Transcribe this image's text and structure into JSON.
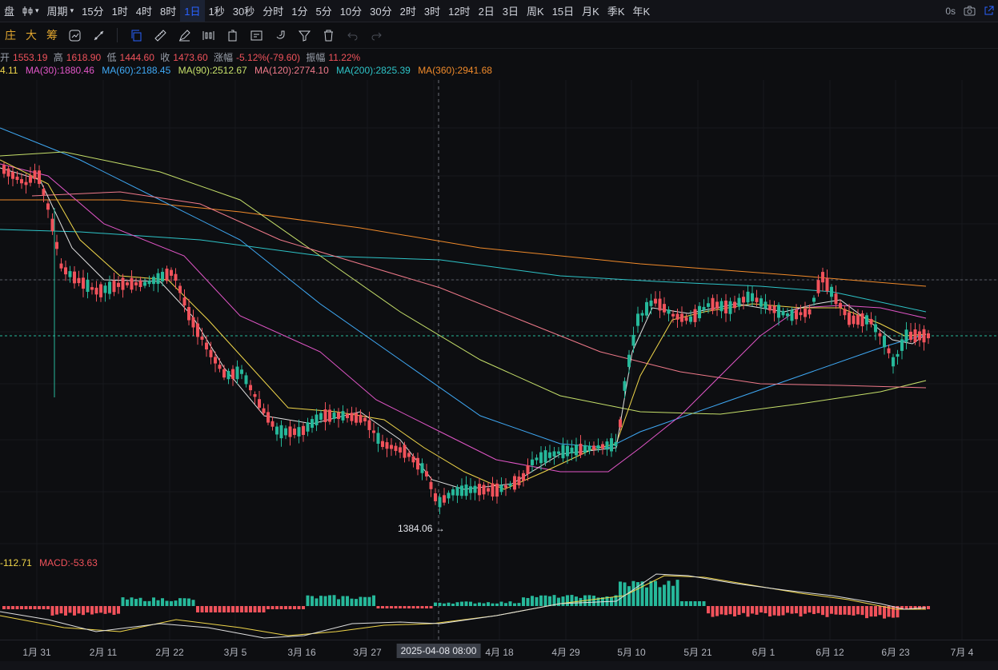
{
  "topbar": {
    "items": [
      "盘",
      "周期",
      "15分",
      "1时",
      "4时",
      "8时",
      "1日",
      "1秒",
      "30秒",
      "分时",
      "1分",
      "5分",
      "10分",
      "30分",
      "2时",
      "3时",
      "12时",
      "2日",
      "3日",
      "周K",
      "15日",
      "月K",
      "季K",
      "年K"
    ],
    "active": "1日",
    "countdown": "0s"
  },
  "toolbar": {
    "modes": [
      "庄",
      "大",
      "筹"
    ]
  },
  "ohlc": {
    "open_label": "开",
    "open": "1553.19",
    "high_label": "高",
    "high": "1618.90",
    "low_label": "低",
    "low": "1444.60",
    "close_label": "收",
    "close": "1473.60",
    "change_label": "涨幅",
    "change": "-5.12%(-79.60)",
    "amp_label": "振幅",
    "amp": "11.22%"
  },
  "ma_legend": [
    {
      "text": "4.11",
      "color": "#f0d64a"
    },
    {
      "text": "MA(30):1880.46",
      "color": "#e256c8"
    },
    {
      "text": "MA(60):2188.45",
      "color": "#3fa9f5"
    },
    {
      "text": "MA(90):2512.67",
      "color": "#c6e06a"
    },
    {
      "text": "MA(120):2774.10",
      "color": "#f07a8a"
    },
    {
      "text": "MA(200):2825.39",
      "color": "#2ec4c8"
    },
    {
      "text": "MA(360):2941.68",
      "color": "#f08a2a"
    }
  ],
  "macd_legend": [
    {
      "text": "-112.71",
      "color": "#f0d64a"
    },
    {
      "text": "MACD:-53.63",
      "color": "#f0525b"
    }
  ],
  "low_marker": "1384.06",
  "xaxis": {
    "ticks": [
      "1月 31",
      "2月 11",
      "2月 22",
      "3月 5",
      "3月 16",
      "3月 27",
      "4月 18",
      "4月 29",
      "5月 10",
      "5月 21",
      "6月 1",
      "6月 12",
      "6月 23",
      "7月 4"
    ],
    "cursor_label": "2025-04-08 08:00"
  },
  "colors": {
    "up": "#26b89a",
    "down": "#f0525b",
    "background": "#0d0e11"
  }
}
